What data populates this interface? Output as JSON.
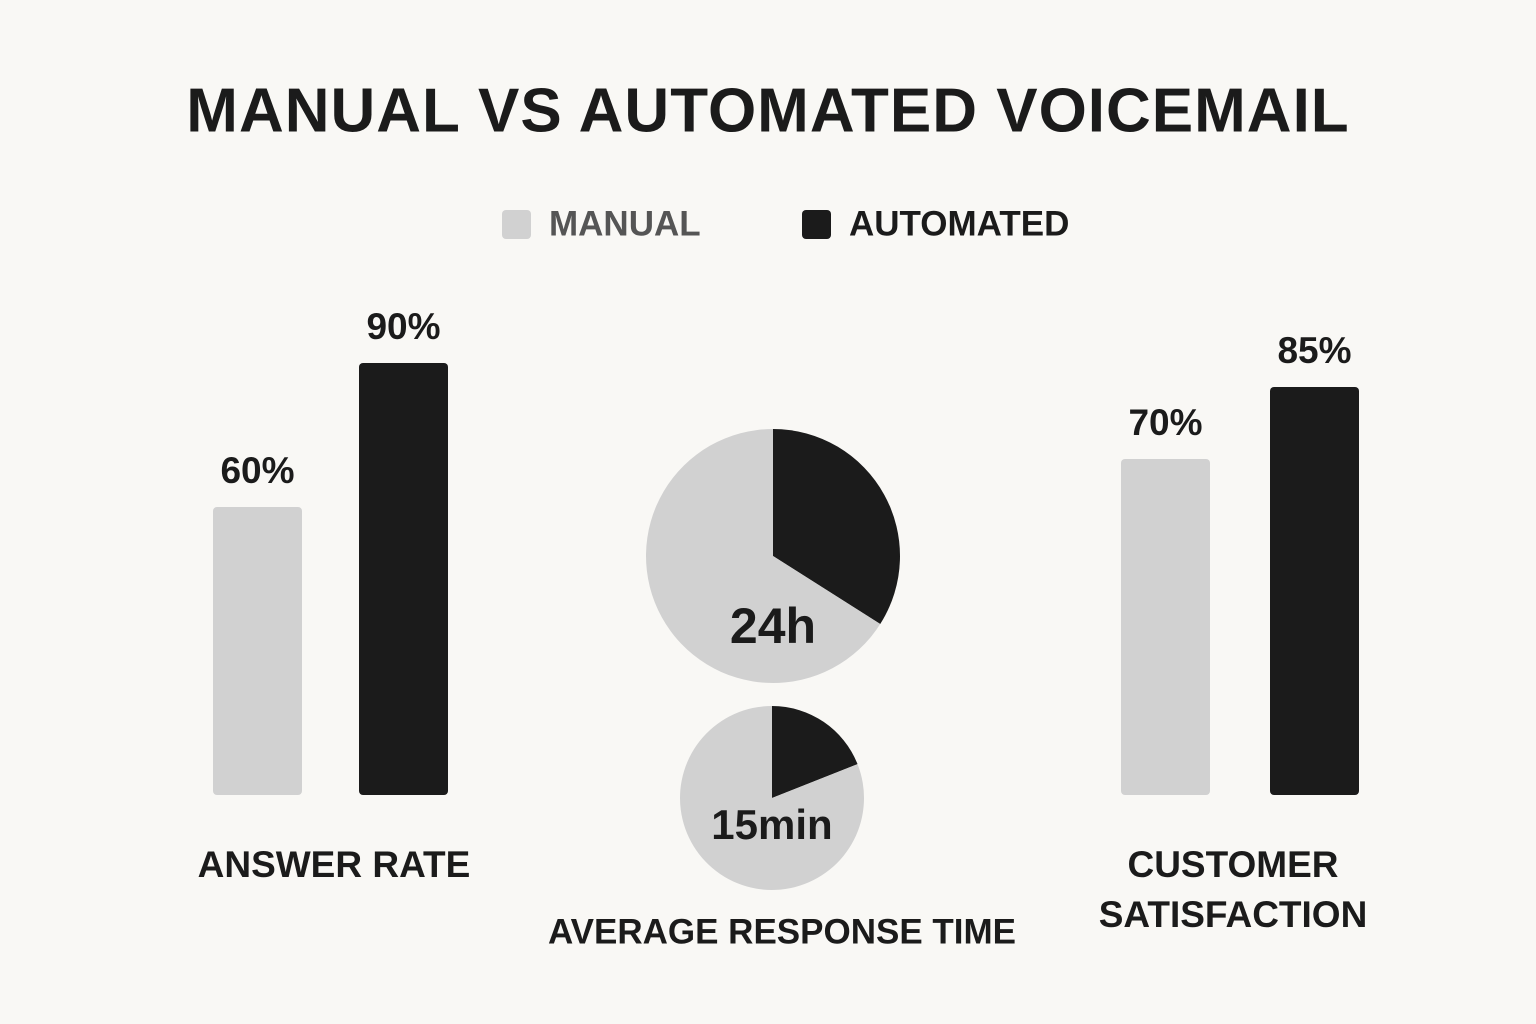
{
  "title": "MANUAL VS AUTOMATED VOICEMAIL",
  "chart_data": [
    {
      "type": "bar",
      "title": "ANSWER RATE",
      "ylim": [
        0,
        100
      ],
      "series": [
        {
          "name": "MANUAL",
          "color": "#d1d1d1",
          "values": [
            60
          ],
          "value_labels": [
            "60%"
          ]
        },
        {
          "name": "AUTOMATED",
          "color": "#1b1b1b",
          "values": [
            90
          ],
          "value_labels": [
            "90%"
          ]
        }
      ]
    },
    {
      "type": "pie",
      "title": "AVERAGE RESPONSE TIME",
      "colors": [
        "#d1d1d1",
        "#1b1b1b"
      ],
      "pies": [
        {
          "label": "24h",
          "values": [
            66,
            34
          ]
        },
        {
          "label": "15min",
          "values": [
            81,
            19
          ]
        }
      ]
    },
    {
      "type": "bar",
      "title": "CUSTOMER SATISFACTION",
      "ylim": [
        0,
        100
      ],
      "series": [
        {
          "name": "MANUAL",
          "color": "#d1d1d1",
          "values": [
            70
          ],
          "value_labels": [
            "70%"
          ]
        },
        {
          "name": "AUTOMATED",
          "color": "#1b1b1b",
          "values": [
            85
          ],
          "value_labels": [
            "85%"
          ]
        }
      ]
    }
  ]
}
